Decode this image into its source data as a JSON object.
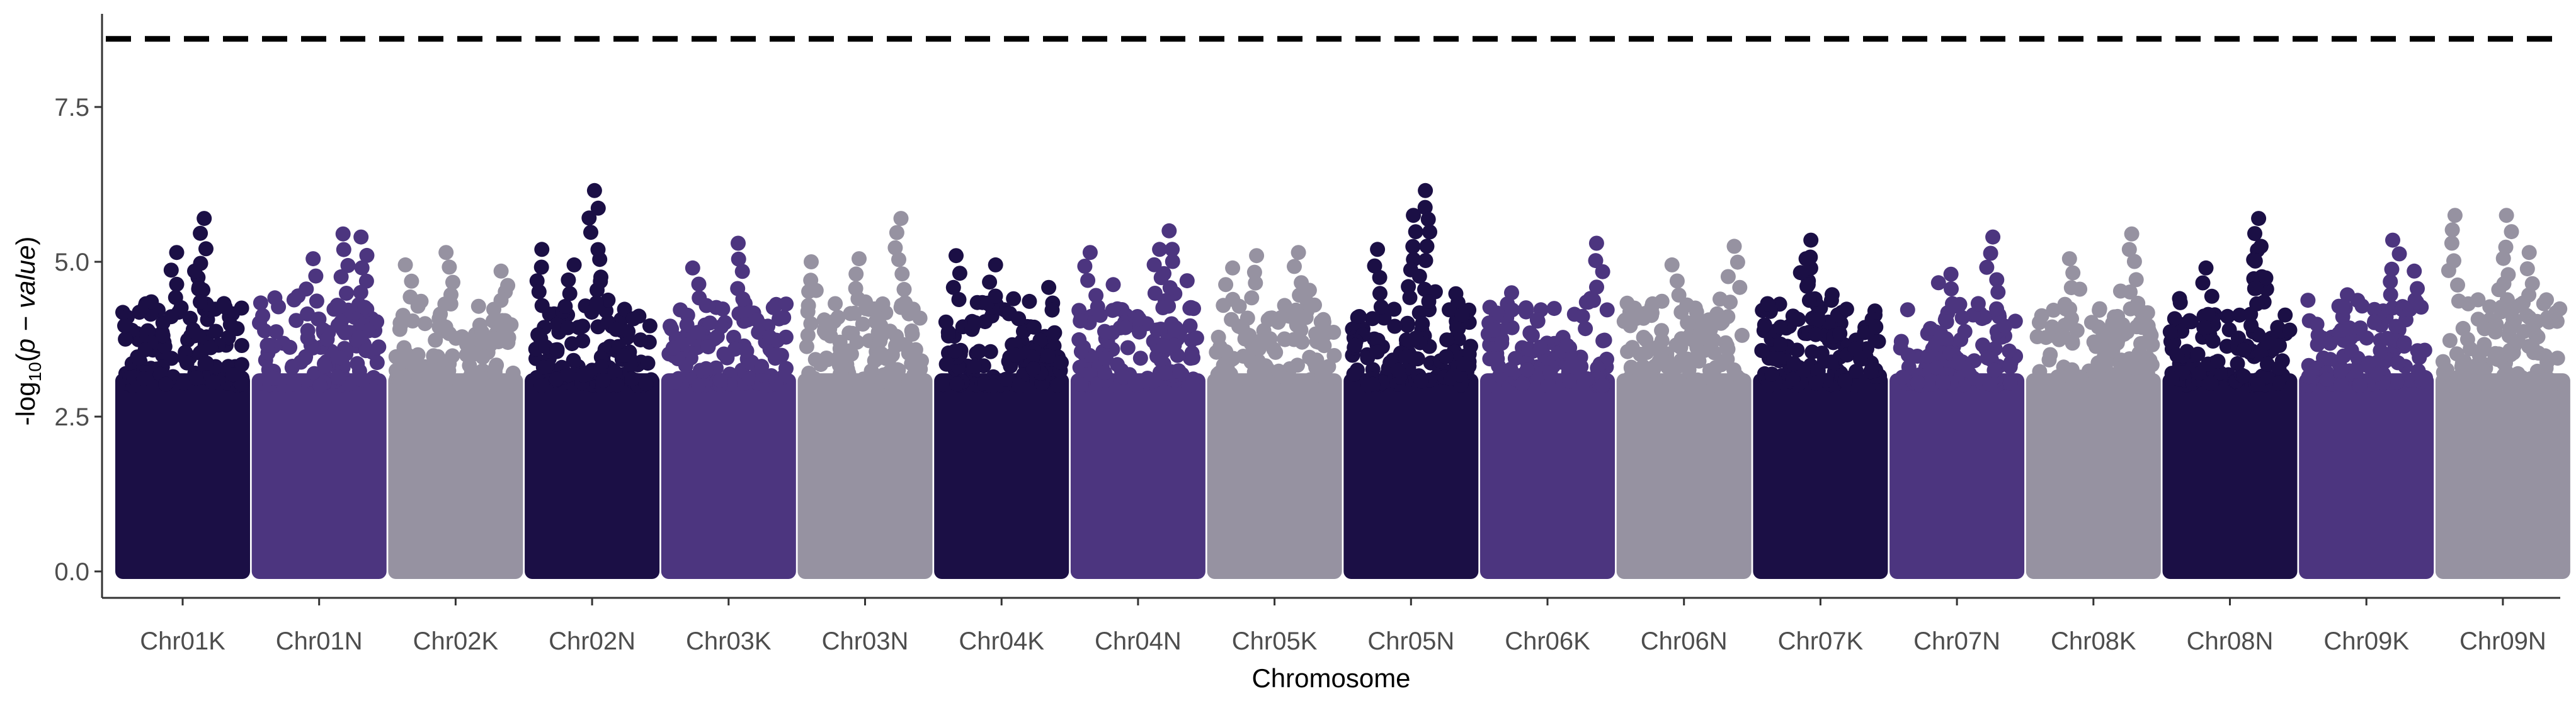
{
  "chart_data": {
    "type": "scatter",
    "subtype": "manhattan",
    "title": "",
    "xlabel": "Chromosome",
    "ylabel": {
      "prefix": "-log",
      "subscript": "10",
      "open": "(",
      "p": "p",
      "minus": " − ",
      "value": "value",
      "close": ")"
    },
    "ylim": [
      0,
      9.0
    ],
    "y_ticks": [
      {
        "value": 0,
        "label": "0.0"
      },
      {
        "value": 2.5,
        "label": "2.5"
      },
      {
        "value": 5.0,
        "label": "5.0"
      },
      {
        "value": 7.5,
        "label": "7.5"
      }
    ],
    "threshold": 8.6,
    "grid": false,
    "legend": "none",
    "palette": [
      "#1b0f45",
      "#4c357f",
      "#9692a1"
    ],
    "categories": [
      "Chr01K",
      "Chr01N",
      "Chr02K",
      "Chr02N",
      "Chr03K",
      "Chr03N",
      "Chr04K",
      "Chr04N",
      "Chr05K",
      "Chr05N",
      "Chr06K",
      "Chr06N",
      "Chr07K",
      "Chr07N",
      "Chr08K",
      "Chr08N",
      "Chr09K",
      "Chr09N"
    ],
    "chromosomes": [
      {
        "name": "Chr01K",
        "color": "#1b0f45",
        "max": 5.7,
        "peaks": [
          [
            0.68,
            5.7
          ],
          [
            0.45,
            5.15
          ],
          [
            0.6,
            4.85
          ]
        ]
      },
      {
        "name": "Chr01N",
        "color": "#4c357f",
        "max": 5.45,
        "peaks": [
          [
            0.7,
            5.45
          ],
          [
            0.85,
            5.4
          ],
          [
            0.45,
            5.05
          ]
        ]
      },
      {
        "name": "Chr02K",
        "color": "#9692a1",
        "max": 5.15,
        "peaks": [
          [
            0.08,
            4.95
          ],
          [
            0.42,
            5.15
          ],
          [
            0.88,
            4.85
          ]
        ]
      },
      {
        "name": "Chr02N",
        "color": "#1b0f45",
        "max": 6.15,
        "peaks": [
          [
            0.52,
            6.15
          ],
          [
            0.08,
            5.2
          ],
          [
            0.35,
            4.95
          ]
        ]
      },
      {
        "name": "Chr03K",
        "color": "#4c357f",
        "max": 5.3,
        "peaks": [
          [
            0.58,
            5.3
          ],
          [
            0.2,
            4.9
          ]
        ]
      },
      {
        "name": "Chr03N",
        "color": "#9692a1",
        "max": 5.7,
        "peaks": [
          [
            0.8,
            5.7
          ],
          [
            0.45,
            5.05
          ],
          [
            0.05,
            5.0
          ]
        ]
      },
      {
        "name": "Chr04K",
        "color": "#1b0f45",
        "max": 5.1,
        "peaks": [
          [
            0.12,
            5.1
          ],
          [
            0.45,
            4.95
          ]
        ]
      },
      {
        "name": "Chr04N",
        "color": "#4c357f",
        "max": 5.5,
        "peaks": [
          [
            0.76,
            5.5
          ],
          [
            0.1,
            5.15
          ],
          [
            0.68,
            5.2
          ]
        ]
      },
      {
        "name": "Chr05K",
        "color": "#9692a1",
        "max": 5.15,
        "peaks": [
          [
            0.35,
            5.1
          ],
          [
            0.7,
            5.15
          ],
          [
            0.15,
            4.9
          ]
        ]
      },
      {
        "name": "Chr05N",
        "color": "#1b0f45",
        "max": 6.15,
        "peaks": [
          [
            0.62,
            6.15
          ],
          [
            0.52,
            5.75
          ],
          [
            0.22,
            5.2
          ]
        ]
      },
      {
        "name": "Chr06K",
        "color": "#4c357f",
        "max": 5.3,
        "peaks": [
          [
            0.91,
            5.3
          ],
          [
            0.2,
            4.5
          ]
        ]
      },
      {
        "name": "Chr06N",
        "color": "#9692a1",
        "max": 5.25,
        "peaks": [
          [
            0.92,
            5.25
          ],
          [
            0.4,
            4.95
          ]
        ]
      },
      {
        "name": "Chr07K",
        "color": "#1b0f45",
        "max": 5.35,
        "peaks": [
          [
            0.42,
            5.35
          ],
          [
            0.38,
            5.05
          ]
        ]
      },
      {
        "name": "Chr07N",
        "color": "#4c357f",
        "max": 5.4,
        "peaks": [
          [
            0.8,
            5.4
          ],
          [
            0.45,
            4.8
          ]
        ]
      },
      {
        "name": "Chr08K",
        "color": "#9692a1",
        "max": 5.45,
        "peaks": [
          [
            0.82,
            5.45
          ],
          [
            0.3,
            5.05
          ]
        ]
      },
      {
        "name": "Chr08N",
        "color": "#1b0f45",
        "max": 5.7,
        "peaks": [
          [
            0.74,
            5.7
          ],
          [
            0.76,
            5.25
          ],
          [
            0.3,
            4.9
          ]
        ]
      },
      {
        "name": "Chr09K",
        "color": "#4c357f",
        "max": 5.35,
        "peaks": [
          [
            0.72,
            5.35
          ],
          [
            0.9,
            4.85
          ]
        ]
      },
      {
        "name": "Chr09N",
        "color": "#9692a1",
        "max": 5.75,
        "peaks": [
          [
            0.1,
            5.75
          ],
          [
            0.53,
            5.75
          ],
          [
            0.72,
            5.15
          ]
        ]
      }
    ]
  }
}
